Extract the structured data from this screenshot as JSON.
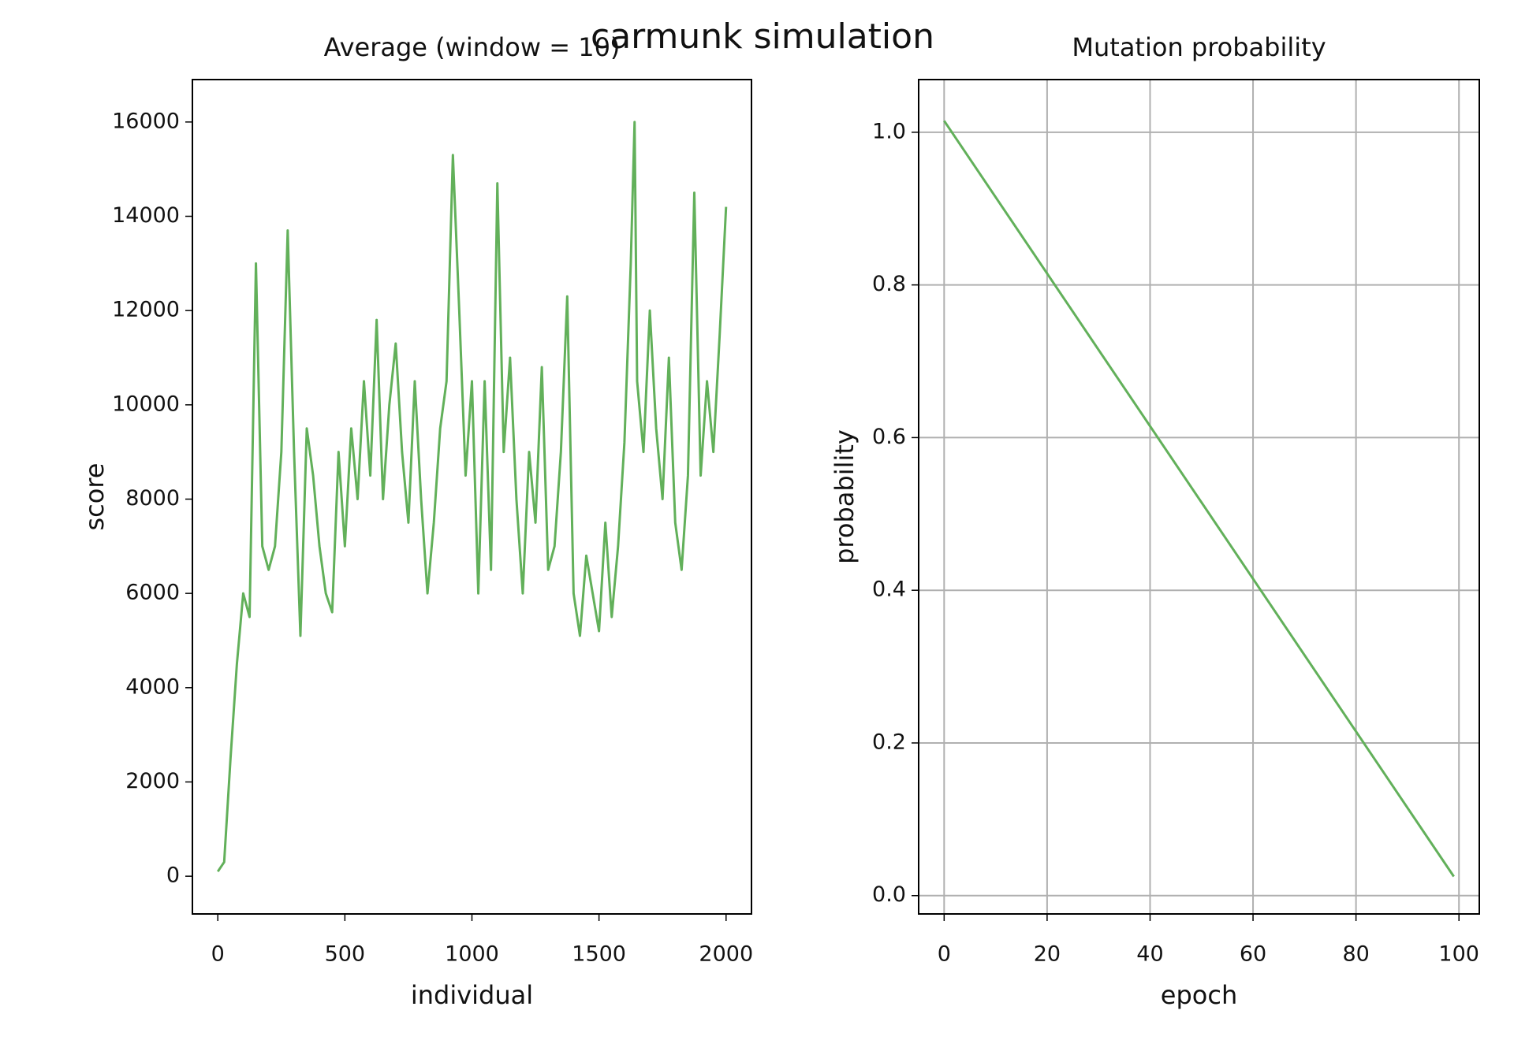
{
  "title": "carmunk simulation",
  "chart_data": [
    {
      "type": "line",
      "title": "Average (window = 10)",
      "xlabel": "individual",
      "ylabel": "score",
      "xlim": [
        -100,
        2100
      ],
      "ylim": [
        -800,
        16900
      ],
      "xticks": [
        0,
        500,
        1000,
        1500,
        2000
      ],
      "yticks": [
        0,
        2000,
        4000,
        6000,
        8000,
        10000,
        12000,
        14000,
        16000
      ],
      "grid": false,
      "series": [
        {
          "name": "score",
          "color": "#62b05a",
          "x": [
            0,
            25,
            50,
            75,
            100,
            125,
            150,
            175,
            200,
            225,
            250,
            275,
            300,
            325,
            350,
            375,
            400,
            425,
            450,
            475,
            500,
            525,
            550,
            575,
            600,
            625,
            650,
            675,
            700,
            725,
            750,
            775,
            800,
            825,
            850,
            875,
            900,
            925,
            950,
            975,
            1000,
            1025,
            1050,
            1075,
            1100,
            1125,
            1150,
            1175,
            1200,
            1225,
            1250,
            1275,
            1300,
            1325,
            1350,
            1375,
            1400,
            1425,
            1450,
            1475,
            1500,
            1525,
            1550,
            1575,
            1600,
            1625,
            1640,
            1650,
            1675,
            1700,
            1725,
            1750,
            1775,
            1800,
            1825,
            1850,
            1875,
            1900,
            1925,
            1950,
            1975,
            2000
          ],
          "values": [
            100,
            300,
            2500,
            4500,
            6000,
            5500,
            13000,
            7000,
            6500,
            7000,
            9000,
            13700,
            9000,
            5100,
            9500,
            8500,
            7000,
            6000,
            5600,
            9000,
            7000,
            9500,
            8000,
            10500,
            8500,
            11800,
            8000,
            10000,
            11300,
            9000,
            7500,
            10500,
            8000,
            6000,
            7500,
            9500,
            10500,
            15300,
            12000,
            8500,
            10500,
            6000,
            10500,
            6500,
            14700,
            9000,
            11000,
            8000,
            6000,
            9000,
            7500,
            10800,
            6500,
            7000,
            9000,
            12300,
            6000,
            5100,
            6800,
            6000,
            5200,
            7500,
            5500,
            7000,
            9200,
            13000,
            16000,
            10500,
            9000,
            12000,
            9500,
            8000,
            11000,
            7500,
            6500,
            8500,
            14500,
            8500,
            10500,
            9000,
            11500,
            14200
          ]
        }
      ]
    },
    {
      "type": "line",
      "title": "Mutation probability",
      "xlabel": "epoch",
      "ylabel": "probability",
      "xlim": [
        -4.95,
        103.95
      ],
      "ylim": [
        -0.024,
        1.069
      ],
      "xticks": [
        0,
        20,
        40,
        60,
        80,
        100
      ],
      "yticks": [
        {
          "value": 0,
          "label": "0.0"
        },
        {
          "value": 0.2,
          "label": "0.2"
        },
        {
          "value": 0.4,
          "label": "0.4"
        },
        {
          "value": 0.6,
          "label": "0.6"
        },
        {
          "value": 0.8,
          "label": "0.8"
        },
        {
          "value": 1,
          "label": "1.0"
        }
      ],
      "grid": true,
      "series": [
        {
          "name": "probability",
          "color": "#62b05a",
          "x": [
            0,
            99
          ],
          "values": [
            1.015,
            0.025
          ]
        }
      ]
    }
  ]
}
